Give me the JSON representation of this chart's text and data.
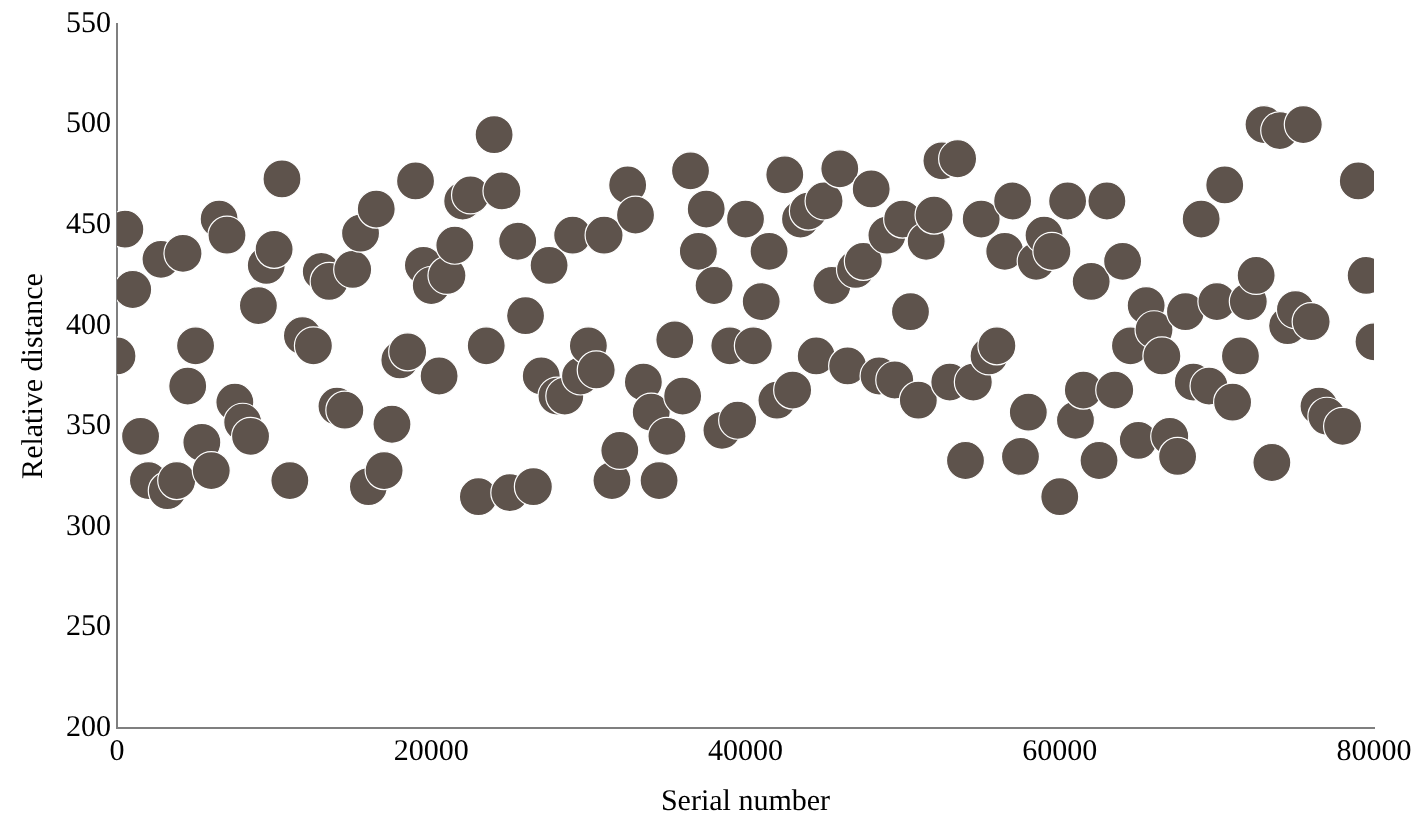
{
  "chart_data": {
    "type": "scatter",
    "xlabel": "Serial number",
    "ylabel": "Relative distance",
    "marker": "circle",
    "grid": false,
    "legend": false,
    "xlim": [
      0,
      80000
    ],
    "xticks": [
      0,
      20000,
      40000,
      60000,
      80000
    ],
    "ylim": [
      200,
      550
    ],
    "yticks": [
      200,
      250,
      300,
      350,
      400,
      450,
      500,
      550
    ],
    "series": [
      {
        "color": "#5e534c",
        "x": [
          0,
          500,
          1000,
          1500,
          2000,
          2800,
          3200,
          3800,
          4200,
          4500,
          5000,
          5400,
          6000,
          6500,
          7000,
          7500,
          8000,
          8500,
          9000,
          9500,
          10000,
          10500,
          11000,
          11800,
          12500,
          13000,
          13500,
          14000,
          14500,
          15000,
          15500,
          16000,
          16500,
          17000,
          17500,
          18000,
          18500,
          19000,
          19500,
          20000,
          20500,
          21000,
          21500,
          22000,
          22500,
          23000,
          23500,
          24000,
          24500,
          25000,
          25500,
          26000,
          26500,
          27000,
          27500,
          28000,
          28500,
          29000,
          29500,
          30000,
          30500,
          31000,
          31500,
          32000,
          32500,
          33000,
          33500,
          34000,
          34500,
          35000,
          35500,
          36000,
          36500,
          37000,
          37500,
          38000,
          38500,
          39000,
          39500,
          40000,
          40500,
          41000,
          41500,
          42000,
          42500,
          43000,
          43500,
          44000,
          44500,
          45000,
          45500,
          46000,
          46500,
          47000,
          47500,
          48000,
          48500,
          49000,
          49500,
          50000,
          50500,
          51000,
          51500,
          52000,
          52500,
          53000,
          53500,
          54000,
          54500,
          55000,
          55500,
          56000,
          56500,
          57000,
          57500,
          58000,
          58500,
          59000,
          59500,
          60000,
          60500,
          61000,
          61500,
          62000,
          62500,
          63000,
          63500,
          64000,
          64500,
          65000,
          65500,
          66000,
          66500,
          67000,
          67500,
          68000,
          68500,
          69000,
          69500,
          70000,
          70500,
          71000,
          71500,
          72000,
          72500,
          73000,
          73500,
          74000,
          74500,
          75000,
          75500,
          76000,
          76500,
          77000,
          78000,
          79000,
          79500,
          80000
        ],
        "values": [
          385,
          448,
          418,
          345,
          323,
          433,
          318,
          323,
          436,
          370,
          390,
          342,
          328,
          453,
          445,
          362,
          352,
          345,
          410,
          430,
          438,
          473,
          323,
          395,
          390,
          427,
          422,
          360,
          358,
          428,
          446,
          320,
          458,
          328,
          351,
          383,
          387,
          472,
          430,
          420,
          375,
          425,
          440,
          462,
          465,
          315,
          390,
          495,
          467,
          317,
          442,
          405,
          320,
          375,
          430,
          365,
          365,
          445,
          375,
          390,
          378,
          445,
          323,
          338,
          470,
          455,
          372,
          357,
          323,
          345,
          393,
          365,
          477,
          437,
          458,
          420,
          348,
          390,
          353,
          453,
          390,
          412,
          437,
          363,
          475,
          368,
          453,
          457,
          385,
          462,
          420,
          478,
          380,
          428,
          432,
          468,
          375,
          445,
          373,
          453,
          407,
          363,
          442,
          455,
          482,
          372,
          483,
          333,
          372,
          453,
          385,
          390,
          437,
          462,
          335,
          357,
          432,
          445,
          437,
          315,
          462,
          353,
          368,
          422,
          333,
          462,
          368,
          432,
          390,
          343,
          410,
          398,
          385,
          345,
          335,
          407,
          372,
          453,
          370,
          412,
          470,
          362,
          385,
          412,
          425,
          500,
          332,
          497,
          400,
          408,
          500,
          402,
          360,
          355,
          350,
          472,
          425,
          392
        ]
      }
    ]
  }
}
